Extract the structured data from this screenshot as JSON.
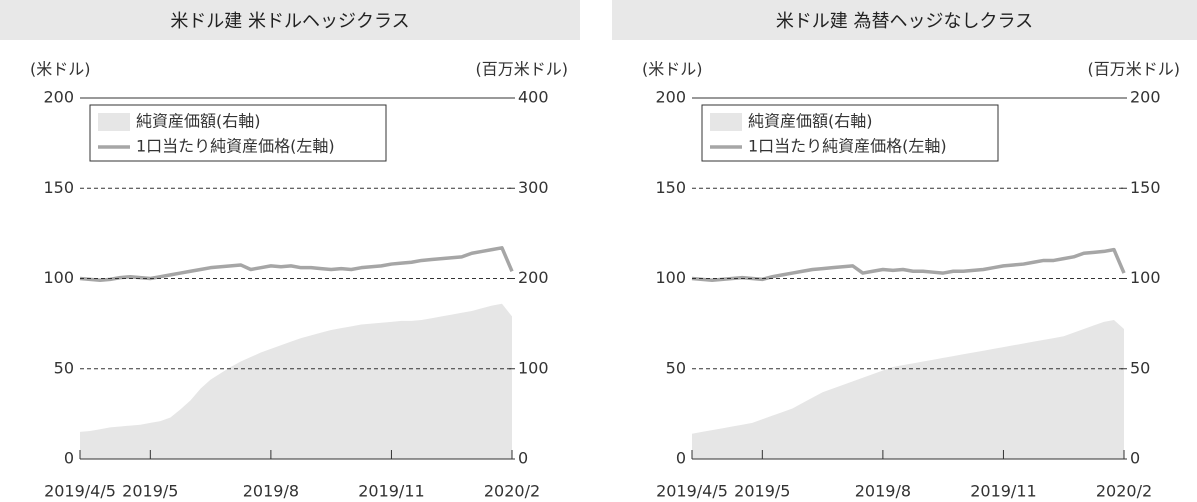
{
  "chart_data": [
    {
      "type": "combo",
      "title": "米ドル建 米ドルヘッジクラス",
      "y_label": "(米ドル)",
      "y2_label": "(百万米ドル)",
      "categories": [
        "2019/4/5",
        null,
        null,
        null,
        null,
        null,
        null,
        "2019/5",
        null,
        null,
        null,
        null,
        null,
        null,
        null,
        null,
        null,
        null,
        null,
        "2019/8",
        null,
        null,
        null,
        null,
        null,
        null,
        null,
        null,
        null,
        null,
        null,
        "2019/11",
        null,
        null,
        null,
        null,
        null,
        null,
        null,
        null,
        null,
        null,
        null,
        "2020/2"
      ],
      "ylim": [
        0,
        200
      ],
      "yticks": [
        0,
        50,
        100,
        150,
        200
      ],
      "y2lim": [
        0,
        400
      ],
      "y2ticks": [
        0,
        100,
        200,
        300,
        400
      ],
      "grid": true,
      "series": [
        {
          "name": "純資産価額(右軸)",
          "type": "area",
          "axis": "y2",
          "color": "#e6e6e6",
          "values": [
            30,
            31,
            33,
            35,
            36,
            37,
            38,
            40,
            42,
            46,
            55,
            65,
            78,
            88,
            95,
            102,
            108,
            113,
            118,
            122,
            126,
            130,
            134,
            137,
            140,
            143,
            145,
            147,
            149,
            150,
            151,
            152,
            153,
            153,
            154,
            156,
            158,
            160,
            162,
            164,
            167,
            170,
            172,
            158
          ]
        },
        {
          "name": "1口当たり純資産価格(左軸)",
          "type": "line",
          "axis": "y",
          "color": "#a6a6a6",
          "values": [
            100,
            99.5,
            99,
            99.5,
            100.5,
            101,
            100.5,
            100,
            101,
            102,
            103,
            104,
            105,
            106,
            106.5,
            107,
            107.5,
            105,
            106,
            107,
            106.5,
            107,
            106,
            106,
            105.5,
            105,
            105.5,
            105,
            106,
            106.5,
            107,
            108,
            108.5,
            109,
            110,
            110.5,
            111,
            111.5,
            112,
            114,
            115,
            116,
            117,
            104
          ]
        }
      ]
    },
    {
      "type": "combo",
      "title": "米ドル建 為替ヘッジなしクラス",
      "y_label": "(米ドル)",
      "y2_label": "(百万米ドル)",
      "categories": [
        "2019/4/5",
        null,
        null,
        null,
        null,
        null,
        null,
        "2019/5",
        null,
        null,
        null,
        null,
        null,
        null,
        null,
        null,
        null,
        null,
        null,
        "2019/8",
        null,
        null,
        null,
        null,
        null,
        null,
        null,
        null,
        null,
        null,
        null,
        "2019/11",
        null,
        null,
        null,
        null,
        null,
        null,
        null,
        null,
        null,
        null,
        null,
        "2020/2"
      ],
      "ylim": [
        0,
        200
      ],
      "yticks": [
        0,
        50,
        100,
        150,
        200
      ],
      "y2lim": [
        0,
        200
      ],
      "y2ticks": [
        0,
        50,
        100,
        150,
        200
      ],
      "grid": true,
      "series": [
        {
          "name": "純資産価額(右軸)",
          "type": "area",
          "axis": "y2",
          "color": "#e6e6e6",
          "values": [
            14,
            15,
            16,
            17,
            18,
            19,
            20,
            22,
            24,
            26,
            28,
            31,
            34,
            37,
            39,
            41,
            43,
            45,
            47,
            49,
            51,
            52,
            53,
            54,
            55,
            56,
            57,
            58,
            59,
            60,
            61,
            62,
            63,
            64,
            65,
            66,
            67,
            68,
            70,
            72,
            74,
            76,
            77,
            72
          ]
        },
        {
          "name": "1口当たり純資産価格(左軸)",
          "type": "line",
          "axis": "y",
          "color": "#a6a6a6",
          "values": [
            100,
            99.5,
            99,
            99.5,
            100,
            100.5,
            100,
            99.5,
            101,
            102,
            103,
            104,
            105,
            105.5,
            106,
            106.5,
            107,
            103,
            104,
            105,
            104.5,
            105,
            104,
            104,
            103.5,
            103,
            104,
            104,
            104.5,
            105,
            106,
            107,
            107.5,
            108,
            109,
            110,
            110,
            111,
            112,
            114,
            114.5,
            115,
            116,
            103
          ]
        }
      ]
    }
  ]
}
